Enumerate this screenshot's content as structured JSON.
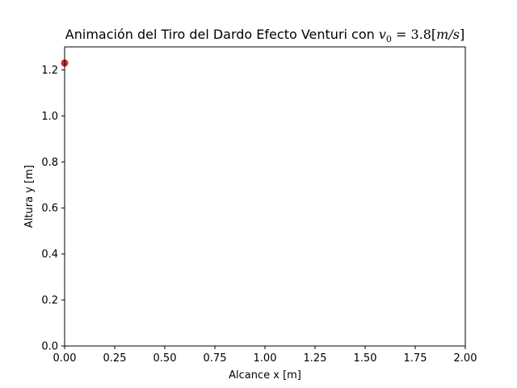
{
  "chart_data": {
    "type": "scatter",
    "title_prefix": "Animación del Tiro del Dardo Efecto Venturi con ",
    "title_math_var": "v",
    "title_math_sub": "0",
    "title_math_rest": " = 3.8[",
    "title_math_unit": "m/s",
    "title_math_close": "]",
    "xlabel": "Alcance x [m]",
    "ylabel": "Altura y [m]",
    "xlim": [
      0,
      2.0
    ],
    "ylim": [
      0,
      1.3
    ],
    "xticks": [
      0.0,
      0.25,
      0.5,
      0.75,
      1.0,
      1.25,
      1.5,
      1.75,
      2.0
    ],
    "xtick_labels": [
      "0.00",
      "0.25",
      "0.50",
      "0.75",
      "1.00",
      "1.25",
      "1.50",
      "1.75",
      "2.00"
    ],
    "yticks": [
      0.0,
      0.2,
      0.4,
      0.6,
      0.8,
      1.0,
      1.2
    ],
    "ytick_labels": [
      "0.0",
      "0.2",
      "0.4",
      "0.6",
      "0.8",
      "1.0",
      "1.2"
    ],
    "grid": false,
    "points": [
      {
        "x": 0.0,
        "y": 1.23,
        "color": "#d62728"
      }
    ]
  }
}
